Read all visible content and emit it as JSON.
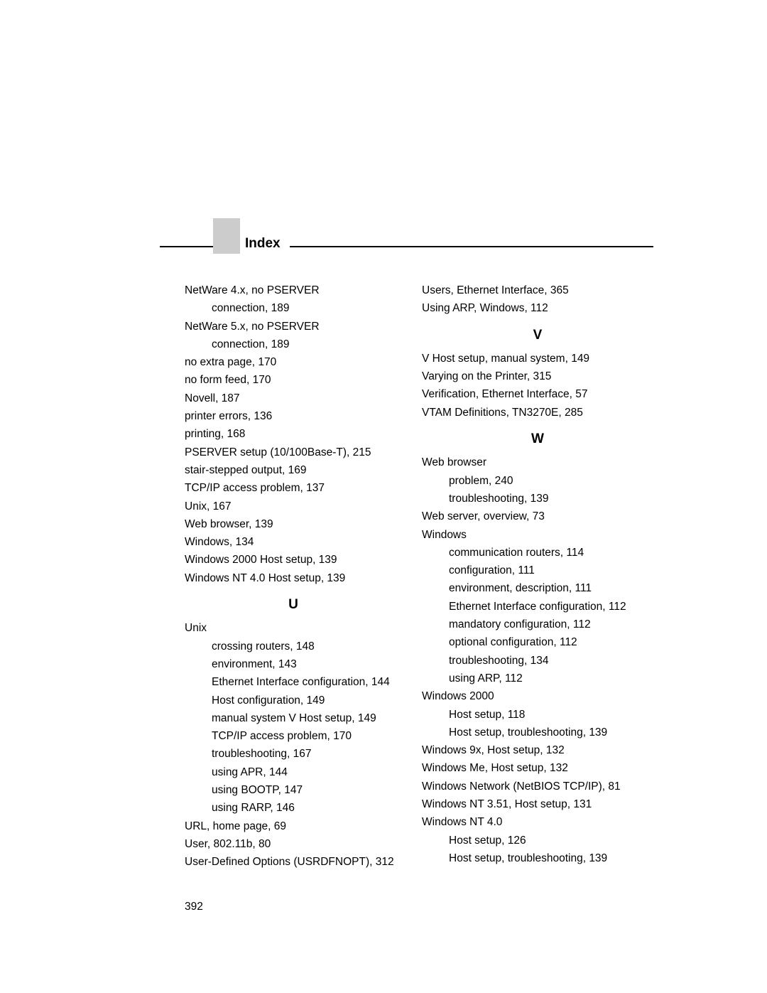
{
  "header": {
    "title": "Index"
  },
  "page_number": "392",
  "columns": {
    "left": [
      {
        "type": "entry",
        "text": "NetWare 4.x, no PSERVER"
      },
      {
        "type": "sub",
        "text": "connection, 189"
      },
      {
        "type": "entry",
        "text": "NetWare 5.x, no PSERVER"
      },
      {
        "type": "sub",
        "text": "connection, 189"
      },
      {
        "type": "entry",
        "text": "no extra page, 170"
      },
      {
        "type": "entry",
        "text": "no form feed, 170"
      },
      {
        "type": "entry",
        "text": "Novell, 187"
      },
      {
        "type": "entry",
        "text": "printer errors, 136"
      },
      {
        "type": "entry",
        "text": "printing, 168"
      },
      {
        "type": "entry",
        "text": "PSERVER setup (10/100Base-T), 215"
      },
      {
        "type": "entry",
        "text": "stair-stepped output, 169"
      },
      {
        "type": "entry",
        "text": "TCP/IP access problem, 137"
      },
      {
        "type": "entry",
        "text": "Unix, 167"
      },
      {
        "type": "entry",
        "text": "Web browser, 139"
      },
      {
        "type": "entry",
        "text": "Windows, 134"
      },
      {
        "type": "entry",
        "text": "Windows 2000 Host setup, 139"
      },
      {
        "type": "entry",
        "text": "Windows NT 4.0 Host setup, 139"
      },
      {
        "type": "letter",
        "text": "U"
      },
      {
        "type": "entry",
        "text": "Unix"
      },
      {
        "type": "sub",
        "text": "crossing routers, 148"
      },
      {
        "type": "sub",
        "text": "environment, 143"
      },
      {
        "type": "sub",
        "text": "Ethernet Interface configuration, 144"
      },
      {
        "type": "sub",
        "text": "Host configuration, 149"
      },
      {
        "type": "sub",
        "text": "manual system V Host setup, 149"
      },
      {
        "type": "sub",
        "text": "TCP/IP access problem, 170"
      },
      {
        "type": "sub",
        "text": "troubleshooting, 167"
      },
      {
        "type": "sub",
        "text": "using APR, 144"
      },
      {
        "type": "sub",
        "text": "using BOOTP, 147"
      },
      {
        "type": "sub",
        "text": "using RARP, 146"
      },
      {
        "type": "entry",
        "text": "URL, home page, 69"
      },
      {
        "type": "entry",
        "text": "User, 802.11b, 80"
      },
      {
        "type": "entry",
        "text": "User-Defined Options (USRDFNOPT), 312"
      }
    ],
    "right": [
      {
        "type": "entry",
        "text": "Users, Ethernet Interface, 365"
      },
      {
        "type": "entry",
        "text": "Using ARP, Windows, 112"
      },
      {
        "type": "letter",
        "text": "V"
      },
      {
        "type": "entry",
        "text": "V Host setup, manual system, 149"
      },
      {
        "type": "entry",
        "text": "Varying on the Printer, 315"
      },
      {
        "type": "entry",
        "text": "Verification, Ethernet Interface, 57"
      },
      {
        "type": "entry",
        "text": "VTAM Definitions, TN3270E, 285"
      },
      {
        "type": "letter",
        "text": "W"
      },
      {
        "type": "entry",
        "text": "Web browser"
      },
      {
        "type": "sub",
        "text": "problem, 240"
      },
      {
        "type": "sub",
        "text": "troubleshooting, 139"
      },
      {
        "type": "entry",
        "text": "Web server, overview, 73"
      },
      {
        "type": "entry",
        "text": "Windows"
      },
      {
        "type": "sub",
        "text": "communication routers, 114"
      },
      {
        "type": "sub",
        "text": "configuration, 111"
      },
      {
        "type": "sub",
        "text": "environment, description, 111"
      },
      {
        "type": "sub",
        "text": "Ethernet Interface configuration, 112"
      },
      {
        "type": "sub",
        "text": "mandatory configuration, 112"
      },
      {
        "type": "sub",
        "text": "optional configuration, 112"
      },
      {
        "type": "sub",
        "text": "troubleshooting, 134"
      },
      {
        "type": "sub",
        "text": "using ARP, 112"
      },
      {
        "type": "entry",
        "text": "Windows 2000"
      },
      {
        "type": "sub",
        "text": "Host setup, 118"
      },
      {
        "type": "sub",
        "text": "Host setup, troubleshooting, 139"
      },
      {
        "type": "entry",
        "text": "Windows 9x, Host setup, 132"
      },
      {
        "type": "entry",
        "text": "Windows Me, Host setup, 132"
      },
      {
        "type": "entry",
        "text": "Windows Network (NetBIOS TCP/IP), 81"
      },
      {
        "type": "entry",
        "text": "Windows NT 3.51, Host setup, 131"
      },
      {
        "type": "entry",
        "text": "Windows NT 4.0"
      },
      {
        "type": "sub",
        "text": "Host setup, 126"
      },
      {
        "type": "sub",
        "text": "Host setup, troubleshooting, 139"
      }
    ]
  }
}
